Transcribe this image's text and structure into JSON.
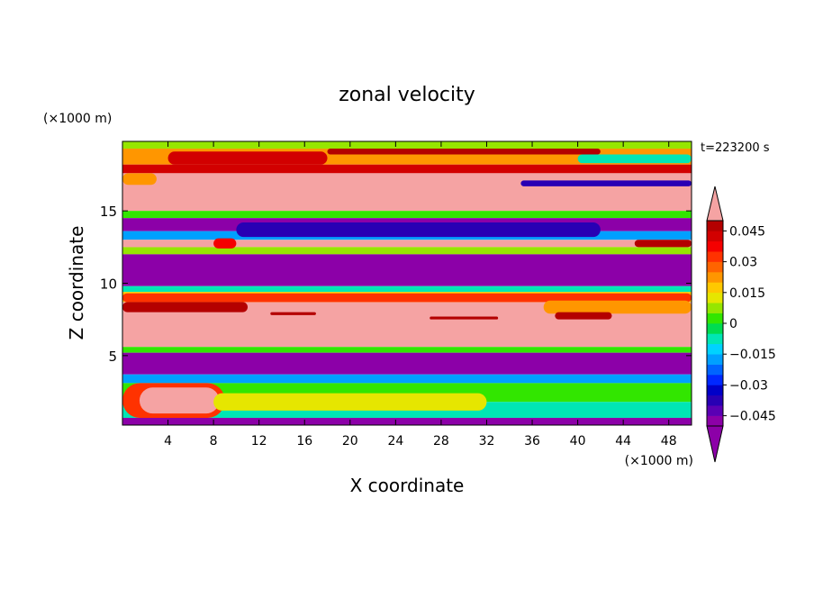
{
  "chart_data": {
    "type": "heatmap",
    "title": "zonal velocity",
    "xlabel": "X coordinate",
    "ylabel": "Z coordinate",
    "x_unit": "(×1000 m)",
    "y_unit": "(×1000 m)",
    "time_label": "t=223200 s",
    "xlim": [
      0,
      50
    ],
    "ylim": [
      0.2,
      19.8
    ],
    "x_ticks": [
      4,
      8,
      12,
      16,
      20,
      24,
      28,
      32,
      36,
      40,
      44,
      48
    ],
    "y_ticks": [
      5,
      10,
      15
    ],
    "colorbar": {
      "range": [
        -0.05,
        0.05
      ],
      "step": 0.005,
      "tick_values": [
        0.045,
        0.03,
        0.015,
        0,
        -0.015,
        -0.03,
        -0.045
      ],
      "tick_labels": [
        "0.045",
        "0.03",
        "0.015",
        "0",
        "−0.015",
        "−0.03",
        "−0.045"
      ],
      "over_color": "#f5a3a3",
      "under_color": "#8c00a8",
      "level_colors": [
        "#8c00a8",
        "#5a00b4",
        "#2800b4",
        "#0000c8",
        "#0028ff",
        "#0064ff",
        "#00a0ff",
        "#00d2ff",
        "#00e6b4",
        "#00dc50",
        "#32e600",
        "#96e600",
        "#e6e600",
        "#ffc800",
        "#ff9600",
        "#ff6400",
        "#ff3200",
        "#f50000",
        "#d20000",
        "#b40000"
      ]
    },
    "bands": [
      {
        "z": [
          19.3,
          19.8
        ],
        "value": 0.005
      },
      {
        "z": [
          18.2,
          19.3
        ],
        "value": 0.02
      },
      {
        "z": [
          17.6,
          18.2
        ],
        "value": 0.04
      },
      {
        "z": [
          15.0,
          17.6
        ],
        "value": 0.06
      },
      {
        "z": [
          14.5,
          15.0
        ],
        "value": 0.0
      },
      {
        "z": [
          13.6,
          14.5
        ],
        "value": -0.06
      },
      {
        "z": [
          13.0,
          13.6
        ],
        "value": -0.02
      },
      {
        "z": [
          12.5,
          13.0
        ],
        "value": 0.06
      },
      {
        "z": [
          12.0,
          12.5
        ],
        "value": 0.005
      },
      {
        "z": [
          9.8,
          12.0
        ],
        "value": -0.06
      },
      {
        "z": [
          9.4,
          9.8
        ],
        "value": -0.01
      },
      {
        "z": [
          8.7,
          9.4
        ],
        "value": 0.015
      },
      {
        "z": [
          5.6,
          8.7
        ],
        "value": 0.06
      },
      {
        "z": [
          5.2,
          5.6
        ],
        "value": 0.0
      },
      {
        "z": [
          3.7,
          5.2
        ],
        "value": -0.06
      },
      {
        "z": [
          3.1,
          3.7
        ],
        "value": -0.02
      },
      {
        "z": [
          1.8,
          3.1
        ],
        "value": 0.0
      },
      {
        "z": [
          0.7,
          1.8
        ],
        "value": -0.01
      },
      {
        "z": [
          0.2,
          0.7
        ],
        "value": -0.06
      }
    ],
    "features": [
      {
        "x": [
          0,
          9
        ],
        "z": [
          0.7,
          3.1
        ],
        "value": 0.03
      },
      {
        "x": [
          1.5,
          8.5
        ],
        "z": [
          1.0,
          2.8
        ],
        "value": 0.06
      },
      {
        "x": [
          8,
          32
        ],
        "z": [
          1.2,
          2.4
        ],
        "value": 0.01
      },
      {
        "x": [
          0,
          50
        ],
        "z": [
          8.7,
          9.3
        ],
        "value": 0.03
      },
      {
        "x": [
          0,
          11
        ],
        "z": [
          8.0,
          8.7
        ],
        "value": 0.045
      },
      {
        "x": [
          37,
          50
        ],
        "z": [
          7.9,
          8.8
        ],
        "value": 0.02
      },
      {
        "x": [
          38,
          43
        ],
        "z": [
          7.5,
          8.0
        ],
        "value": 0.045
      },
      {
        "x": [
          27,
          33
        ],
        "z": [
          7.5,
          7.7
        ],
        "value": 0.045
      },
      {
        "x": [
          13,
          17
        ],
        "z": [
          7.8,
          8.0
        ],
        "value": 0.045
      },
      {
        "x": [
          0,
          8
        ],
        "z": [
          12.5,
          13.0
        ],
        "value": 0.06
      },
      {
        "x": [
          8,
          10
        ],
        "z": [
          12.4,
          13.1
        ],
        "value": 0.035
      },
      {
        "x": [
          45,
          50
        ],
        "z": [
          12.5,
          13.0
        ],
        "value": 0.045
      },
      {
        "x": [
          10,
          42
        ],
        "z": [
          13.2,
          14.2
        ],
        "value": -0.04
      },
      {
        "x": [
          35,
          50
        ],
        "z": [
          16.7,
          17.1
        ],
        "value": -0.04
      },
      {
        "x": [
          0,
          3
        ],
        "z": [
          16.8,
          17.6
        ],
        "value": 0.02
      },
      {
        "x": [
          4,
          18
        ],
        "z": [
          18.2,
          19.1
        ],
        "value": 0.04
      },
      {
        "x": [
          18,
          42
        ],
        "z": [
          18.9,
          19.3
        ],
        "value": 0.045
      },
      {
        "x": [
          40,
          50
        ],
        "z": [
          18.3,
          18.9
        ],
        "value": -0.01
      }
    ]
  }
}
